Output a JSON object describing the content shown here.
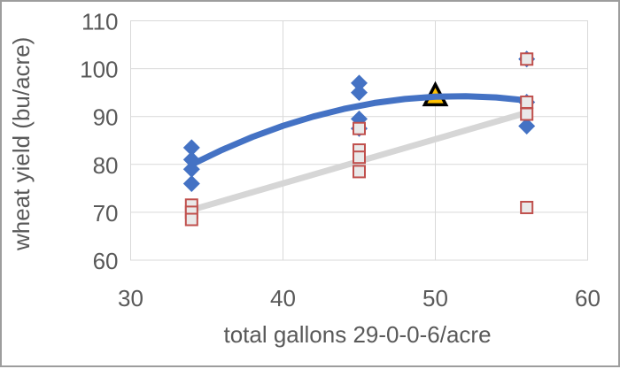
{
  "chart_data": {
    "type": "scatter",
    "title": "",
    "xlabel": "total gallons 29-0-0-6/acre",
    "ylabel": "wheat yield (bu/acre)",
    "xlim": [
      30,
      60
    ],
    "ylim": [
      60,
      110
    ],
    "xticks": [
      30,
      40,
      50,
      60
    ],
    "yticks": [
      60,
      70,
      80,
      90,
      100,
      110
    ],
    "grid": true,
    "grid_color": "#d9d9d9",
    "legend": "none",
    "series": [
      {
        "name": "blue-diamonds",
        "marker": "diamond",
        "color": "#4472c4",
        "points": [
          [
            34,
            83.5
          ],
          [
            34,
            81
          ],
          [
            34,
            79
          ],
          [
            34,
            76
          ],
          [
            45,
            97
          ],
          [
            45,
            95
          ],
          [
            45,
            89.5
          ],
          [
            45,
            87.5
          ],
          [
            56,
            102
          ],
          [
            56,
            93
          ],
          [
            56,
            88
          ]
        ]
      },
      {
        "name": "red-open-squares",
        "marker": "square-open",
        "color": "#c0504d",
        "fill": "#eae9e9",
        "points": [
          [
            34,
            71.5
          ],
          [
            34,
            70
          ],
          [
            34,
            68.5
          ],
          [
            45,
            87.5
          ],
          [
            45,
            83
          ],
          [
            45,
            81.5
          ],
          [
            45,
            78.5
          ],
          [
            56,
            102
          ],
          [
            56,
            93
          ],
          [
            56,
            90.5
          ],
          [
            56,
            71
          ]
        ]
      },
      {
        "name": "highlight-triangle",
        "marker": "triangle",
        "color": "#ffc000",
        "stroke": "#000000",
        "points": [
          [
            50,
            94.3
          ]
        ]
      }
    ],
    "trendlines": [
      {
        "name": "linear-gray",
        "color": "#d6d6d6",
        "width": 7,
        "points": [
          [
            34,
            70.5
          ],
          [
            56,
            90.8
          ]
        ]
      },
      {
        "name": "polynomial-blue",
        "color": "#4472c4",
        "width": 7,
        "points": [
          [
            34,
            79.96
          ],
          [
            36,
            83.03
          ],
          [
            38,
            85.74
          ],
          [
            40,
            88.06
          ],
          [
            42,
            90.0
          ],
          [
            44,
            91.59
          ],
          [
            46,
            92.83
          ],
          [
            48,
            93.66
          ],
          [
            50,
            94.15
          ],
          [
            52,
            94.25
          ],
          [
            54,
            93.99
          ],
          [
            56,
            93.37
          ]
        ]
      }
    ],
    "text_color": "#595959"
  }
}
